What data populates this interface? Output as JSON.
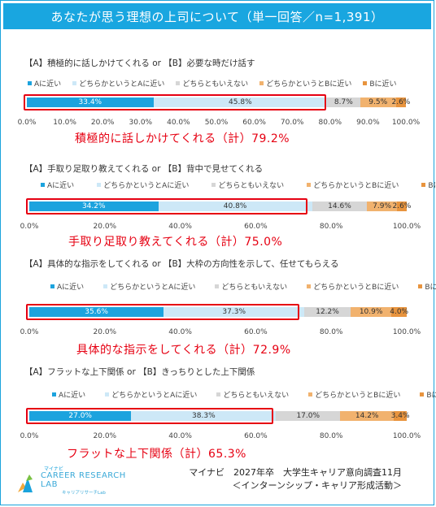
{
  "header": {
    "title": "あなたが思う理想の上司について（単一回答／n=1,391）"
  },
  "legend_labels": [
    "Aに近い",
    "どちらかというとAに近い",
    "どちらともいえない",
    "どちらかというとBに近い",
    "Bに近い"
  ],
  "colors": {
    "a": "#1ca3de",
    "lean_a": "#cde8f7",
    "neutral": "#d6d6d6",
    "lean_b": "#f1b26e",
    "b": "#e8943e",
    "highlight": "#e60012",
    "header": "#19a6e0"
  },
  "chart_data": [
    {
      "type": "bar",
      "question": "【A】積極的に話しかけてくれる or 【B】必要な時だけ話す",
      "series": [
        {
          "name": "Aに近い",
          "value": 33.4
        },
        {
          "name": "どちらかというとAに近い",
          "value": 45.8
        },
        {
          "name": "どちらともいえない",
          "value": 8.7
        },
        {
          "name": "どちらかというとBに近い",
          "value": 9.5
        },
        {
          "name": "Bに近い",
          "value": 2.6
        }
      ],
      "labels": [
        "33.4%",
        "45.8%",
        "8.7%",
        "9.5%",
        "2.6%"
      ],
      "ticks": [
        "0.0%",
        "10.0%",
        "20.0%",
        "30.0%",
        "40.0%",
        "50.0%",
        "60.0%",
        "70.0%",
        "80.0%",
        "90.0%",
        "100.0%"
      ],
      "tick_values": [
        0,
        10,
        20,
        30,
        40,
        50,
        60,
        70,
        80,
        90,
        100
      ],
      "summary": "積極的に話しかけてくれる（計）79.2%",
      "xlim": [
        0,
        100
      ]
    },
    {
      "type": "bar",
      "question": "【A】手取り足取り教えてくれる or 【B】背中で見せてくれる",
      "series": [
        {
          "name": "Aに近い",
          "value": 34.2
        },
        {
          "name": "どちらかというとAに近い",
          "value": 40.8
        },
        {
          "name": "どちらともいえない",
          "value": 14.6
        },
        {
          "name": "どちらかというとBに近い",
          "value": 7.9
        },
        {
          "name": "Bに近い",
          "value": 2.6
        }
      ],
      "labels": [
        "34.2%",
        "40.8%",
        "14.6%",
        "7.9%",
        "2.6%"
      ],
      "ticks": [
        "0.0%",
        "20.0%",
        "40.0%",
        "60.0%",
        "80.0%",
        "100.0%"
      ],
      "tick_values": [
        0,
        20,
        40,
        60,
        80,
        100
      ],
      "summary": "手取り足取り教えてくれる（計）75.0%",
      "xlim": [
        0,
        100
      ]
    },
    {
      "type": "bar",
      "question": "【A】具体的な指示をしてくれる or 【B】大枠の方向性を示して、任せてもらえる",
      "series": [
        {
          "name": "Aに近い",
          "value": 35.6
        },
        {
          "name": "どちらかというとAに近い",
          "value": 37.3
        },
        {
          "name": "どちらともいえない",
          "value": 12.2
        },
        {
          "name": "どちらかというとBに近い",
          "value": 10.9
        },
        {
          "name": "Bに近い",
          "value": 4.0
        }
      ],
      "labels": [
        "35.6%",
        "37.3%",
        "12.2%",
        "10.9%",
        "4.0%"
      ],
      "ticks": [
        "0.0%",
        "20.0%",
        "40.0%",
        "60.0%",
        "80.0%",
        "100.0%"
      ],
      "tick_values": [
        0,
        20,
        40,
        60,
        80,
        100
      ],
      "summary": "具体的な指示をしてくれる（計）72.9%",
      "xlim": [
        0,
        100
      ]
    },
    {
      "type": "bar",
      "question": "【A】フラットな上下関係 or 【B】きっちりとした上下関係",
      "series": [
        {
          "name": "Aに近い",
          "value": 27.0
        },
        {
          "name": "どちらかというとAに近い",
          "value": 38.3
        },
        {
          "name": "どちらともいえない",
          "value": 17.0
        },
        {
          "name": "どちらかというとBに近い",
          "value": 14.2
        },
        {
          "name": "Bに近い",
          "value": 3.4
        }
      ],
      "labels": [
        "27.0%",
        "38.3%",
        "17.0%",
        "14.2%",
        "3.4%"
      ],
      "ticks": [
        "0.0%",
        "20.0%",
        "40.0%",
        "60.0%",
        "80.0%",
        "100.0%"
      ],
      "tick_values": [
        0,
        20,
        40,
        60,
        80,
        100
      ],
      "summary": "フラットな上下関係（計）65.3%",
      "xlim": [
        0,
        100
      ]
    }
  ],
  "footer": {
    "line1": "マイナビ　2027年卒　大学生キャリア意向調査11月",
    "line2": "＜インターンシップ・キャリア形成活動＞"
  },
  "logo": {
    "small": "マイナビ",
    "main1": "CAREER RESEARCH",
    "main2": "LAB",
    "sub": "キャリアリサーチLab"
  }
}
